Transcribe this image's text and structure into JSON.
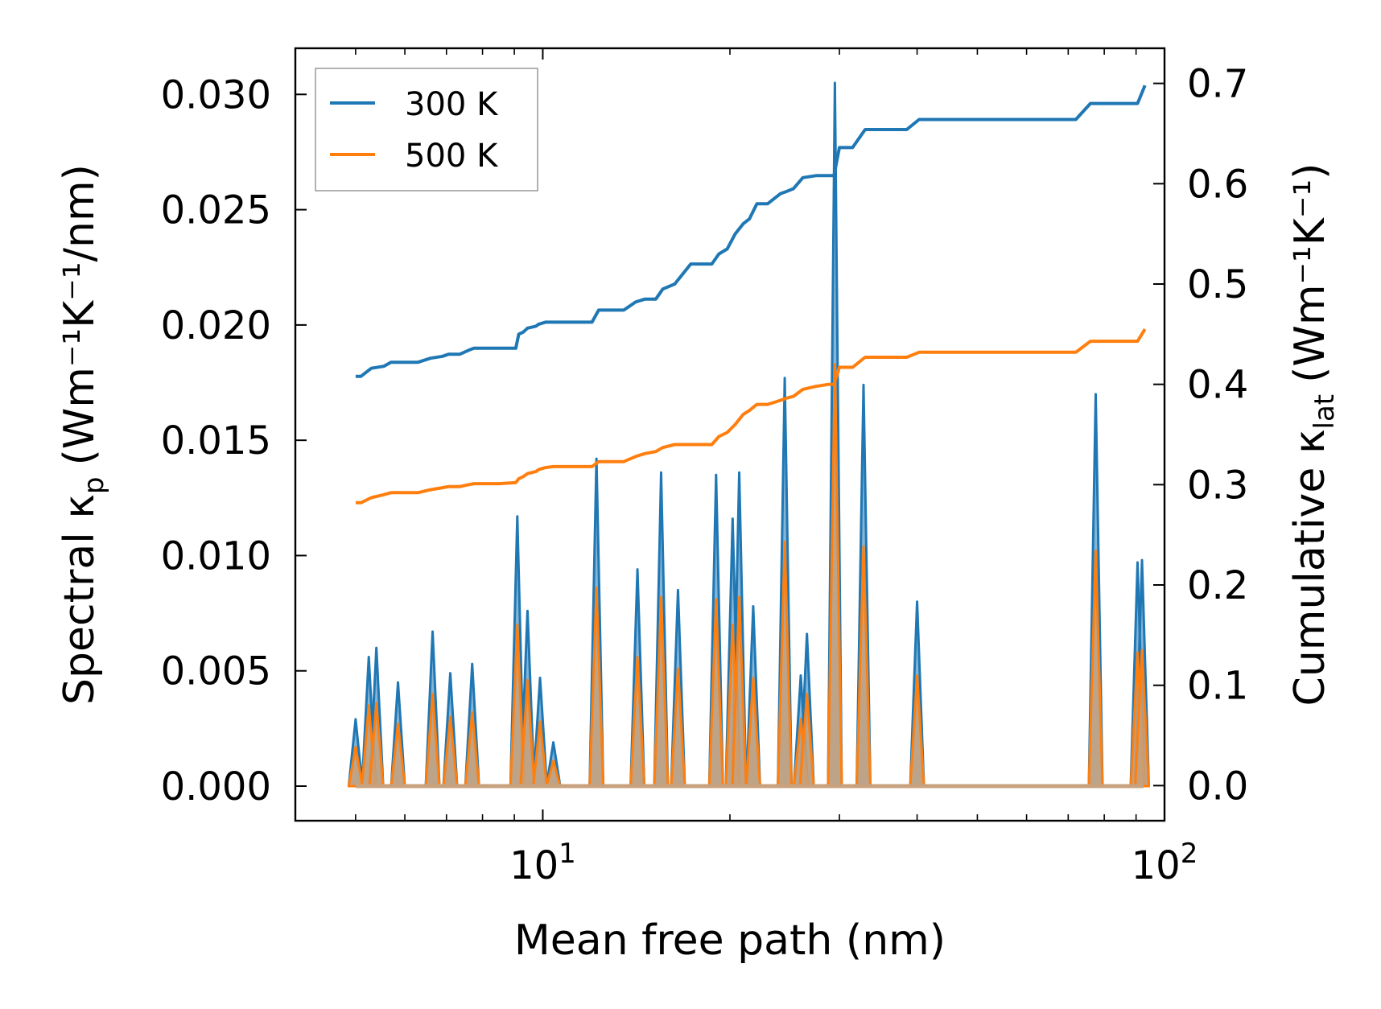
{
  "chart_data": {
    "type": "line",
    "x_scale": "log",
    "xlabel": "Mean free path (nm)",
    "ylabel_left_main": "Spectral κ",
    "ylabel_left_sub": "p",
    "ylabel_left_units": "(Wm⁻¹K⁻¹/nm)",
    "ylabel_right_main": "Cumulative κ",
    "ylabel_right_sub": "lat",
    "ylabel_right_units": "(Wm⁻¹K⁻¹)",
    "xlim": [
      4.0,
      100
    ],
    "ylim_left": [
      -0.0015,
      0.032
    ],
    "ylim_right": [
      -0.035,
      0.735
    ],
    "x_ticks": [
      {
        "value": 10,
        "base": "10",
        "exp": "1"
      },
      {
        "value": 100,
        "base": "10",
        "exp": "2"
      }
    ],
    "y_ticks_left": [
      {
        "value": 0.0,
        "label": "0.000"
      },
      {
        "value": 0.005,
        "label": "0.005"
      },
      {
        "value": 0.01,
        "label": "0.010"
      },
      {
        "value": 0.015,
        "label": "0.015"
      },
      {
        "value": 0.02,
        "label": "0.020"
      },
      {
        "value": 0.025,
        "label": "0.025"
      },
      {
        "value": 0.03,
        "label": "0.030"
      }
    ],
    "y_ticks_right": [
      {
        "value": 0.0,
        "label": "0.0"
      },
      {
        "value": 0.1,
        "label": "0.1"
      },
      {
        "value": 0.2,
        "label": "0.2"
      },
      {
        "value": 0.3,
        "label": "0.3"
      },
      {
        "value": 0.4,
        "label": "0.4"
      },
      {
        "value": 0.5,
        "label": "0.5"
      },
      {
        "value": 0.6,
        "label": "0.6"
      },
      {
        "value": 0.7,
        "label": "0.7"
      }
    ],
    "legend": {
      "placement": "upper-left",
      "entries": [
        {
          "label": "300 K",
          "color": "#1f77b4"
        },
        {
          "label": "500 K",
          "color": "#ff7f0e"
        }
      ]
    },
    "spectral_peaks": [
      {
        "x": 5.0,
        "k300": 0.0029,
        "k500": 0.0017
      },
      {
        "x": 5.25,
        "k300": 0.0056,
        "k500": 0.0035
      },
      {
        "x": 5.4,
        "k300": 0.006,
        "k500": 0.0036
      },
      {
        "x": 5.85,
        "k300": 0.0045,
        "k500": 0.0027
      },
      {
        "x": 6.65,
        "k300": 0.0067,
        "k500": 0.004
      },
      {
        "x": 7.1,
        "k300": 0.0049,
        "k500": 0.003
      },
      {
        "x": 7.7,
        "k300": 0.0053,
        "k500": 0.0032
      },
      {
        "x": 9.1,
        "k300": 0.0117,
        "k500": 0.007
      },
      {
        "x": 9.45,
        "k300": 0.0076,
        "k500": 0.0046
      },
      {
        "x": 9.9,
        "k300": 0.0047,
        "k500": 0.0028
      },
      {
        "x": 10.4,
        "k300": 0.0019,
        "k500": 0.0011
      },
      {
        "x": 12.2,
        "k300": 0.0142,
        "k500": 0.0086
      },
      {
        "x": 14.2,
        "k300": 0.0094,
        "k500": 0.0056
      },
      {
        "x": 15.5,
        "k300": 0.0136,
        "k500": 0.0082
      },
      {
        "x": 16.5,
        "k300": 0.0085,
        "k500": 0.0051
      },
      {
        "x": 19.0,
        "k300": 0.0135,
        "k500": 0.0081
      },
      {
        "x": 20.2,
        "k300": 0.0116,
        "k500": 0.007
      },
      {
        "x": 20.7,
        "k300": 0.0136,
        "k500": 0.0082
      },
      {
        "x": 21.8,
        "k300": 0.0078,
        "k500": 0.0047
      },
      {
        "x": 24.5,
        "k300": 0.0177,
        "k500": 0.0106
      },
      {
        "x": 26.0,
        "k300": 0.0048,
        "k500": 0.0029
      },
      {
        "x": 26.6,
        "k300": 0.0066,
        "k500": 0.004
      },
      {
        "x": 29.5,
        "k300": 0.0305,
        "k500": 0.0183
      },
      {
        "x": 32.8,
        "k300": 0.0174,
        "k500": 0.0104
      },
      {
        "x": 40.0,
        "k300": 0.008,
        "k500": 0.0048
      },
      {
        "x": 77.5,
        "k300": 0.017,
        "k500": 0.0102
      },
      {
        "x": 90.5,
        "k300": 0.0097,
        "k500": 0.0058
      },
      {
        "x": 92.0,
        "k300": 0.0098,
        "k500": 0.0059
      }
    ],
    "cumulative_300K": {
      "x": [
        5.0,
        5.1,
        5.3,
        5.55,
        5.7,
        6.3,
        6.6,
        6.9,
        7.05,
        7.35,
        7.6,
        7.75,
        8.5,
        9.05,
        9.15,
        9.3,
        9.45,
        9.75,
        9.85,
        10.1,
        10.4,
        11.0,
        12.0,
        12.3,
        13.5,
        14.1,
        14.6,
        15.2,
        15.6,
        16.3,
        17.3,
        18.7,
        19.2,
        19.8,
        20.4,
        21.0,
        21.5,
        22.1,
        23.0,
        24.1,
        24.6,
        25.3,
        26.2,
        27.5,
        28.8,
        29.4,
        30.0,
        31.5,
        33.0,
        36.0,
        38.5,
        40.3,
        55.0,
        72.0,
        76.0,
        78.0,
        85.0,
        90.5,
        93.0
      ],
      "y": [
        0.408,
        0.408,
        0.416,
        0.418,
        0.422,
        0.422,
        0.426,
        0.428,
        0.43,
        0.43,
        0.434,
        0.436,
        0.436,
        0.436,
        0.45,
        0.452,
        0.456,
        0.458,
        0.46,
        0.462,
        0.462,
        0.462,
        0.462,
        0.474,
        0.474,
        0.482,
        0.485,
        0.485,
        0.495,
        0.5,
        0.52,
        0.52,
        0.53,
        0.535,
        0.55,
        0.56,
        0.565,
        0.58,
        0.58,
        0.59,
        0.592,
        0.595,
        0.606,
        0.608,
        0.608,
        0.608,
        0.636,
        0.636,
        0.654,
        0.654,
        0.654,
        0.664,
        0.664,
        0.664,
        0.68,
        0.68,
        0.68,
        0.68,
        0.698
      ]
    },
    "cumulative_500K": {
      "x": [
        5.0,
        5.1,
        5.3,
        5.55,
        5.7,
        6.3,
        6.6,
        6.9,
        7.05,
        7.35,
        7.6,
        7.75,
        8.5,
        9.05,
        9.15,
        9.3,
        9.45,
        9.75,
        9.85,
        10.1,
        10.4,
        11.0,
        12.0,
        12.3,
        13.5,
        14.1,
        14.6,
        15.2,
        15.6,
        16.3,
        17.3,
        18.7,
        19.2,
        19.8,
        20.4,
        21.0,
        21.5,
        22.1,
        23.0,
        24.1,
        24.6,
        25.3,
        26.2,
        27.5,
        28.8,
        29.4,
        30.0,
        31.5,
        33.0,
        36.0,
        38.5,
        40.3,
        55.0,
        72.0,
        76.0,
        78.0,
        85.0,
        90.5,
        93.0
      ],
      "y": [
        0.282,
        0.282,
        0.287,
        0.29,
        0.292,
        0.292,
        0.295,
        0.297,
        0.298,
        0.298,
        0.3,
        0.301,
        0.301,
        0.302,
        0.306,
        0.308,
        0.311,
        0.313,
        0.315,
        0.317,
        0.318,
        0.318,
        0.318,
        0.323,
        0.323,
        0.328,
        0.331,
        0.333,
        0.337,
        0.34,
        0.34,
        0.34,
        0.348,
        0.352,
        0.36,
        0.37,
        0.374,
        0.38,
        0.38,
        0.384,
        0.386,
        0.388,
        0.395,
        0.398,
        0.4,
        0.4,
        0.417,
        0.417,
        0.427,
        0.427,
        0.427,
        0.432,
        0.432,
        0.432,
        0.443,
        0.443,
        0.443,
        0.443,
        0.455
      ]
    }
  }
}
